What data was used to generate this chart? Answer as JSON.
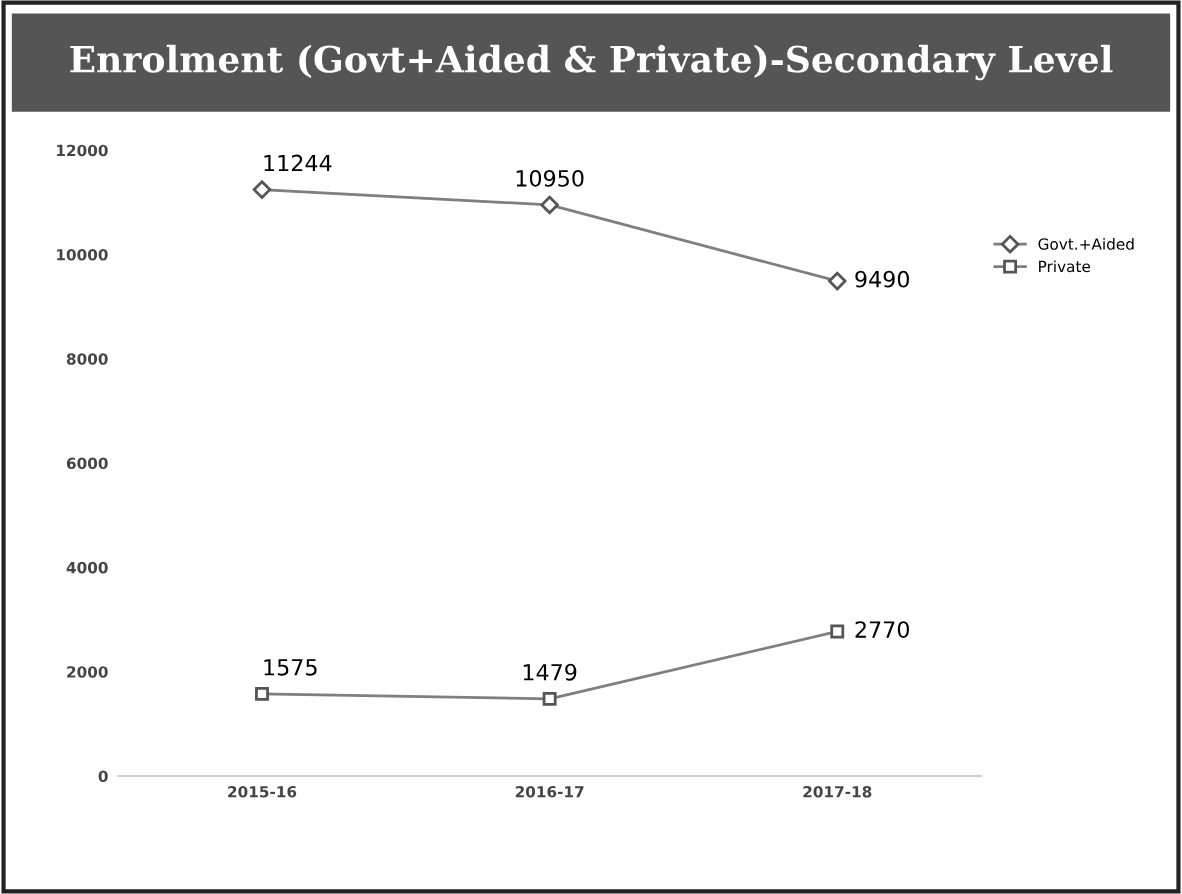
{
  "chart_data": {
    "type": "line",
    "title": "Enrolment (Govt+Aided & Private)-Secondary Level",
    "categories": [
      "2015-16",
      "2016-17",
      "2017-18"
    ],
    "series": [
      {
        "name": "Govt.+Aided",
        "color": "#7f7f7f",
        "values": [
          11244,
          10950,
          9490
        ],
        "marker": "diamond"
      },
      {
        "name": "Private",
        "color": "#7f7f7f",
        "values": [
          1575,
          1479,
          2770
        ],
        "marker": "square"
      }
    ],
    "ylim": [
      0,
      12000
    ],
    "yticks": [
      0,
      2000,
      4000,
      6000,
      8000,
      10000,
      12000
    ],
    "data_labels": true,
    "legend": "right",
    "grid": false,
    "line_style": "solid"
  }
}
